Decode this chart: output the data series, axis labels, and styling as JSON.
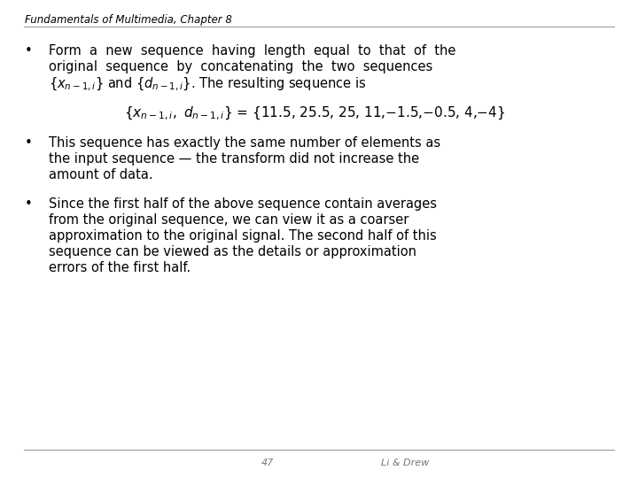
{
  "header": "Fundamentals of Multimedia, Chapter 8",
  "header_fontsize": 8.5,
  "bg_color": "#ffffff",
  "text_color": "#000000",
  "footer_page": "47",
  "footer_author": "Li & Drew",
  "footer_fontsize": 8,
  "main_fontsize": 10.5,
  "formula_fontsize": 11,
  "line_color": "#aaaaaa",
  "bullet_char": "•",
  "b1_l1": "Form  a  new  sequence  having  length  equal  to  that  of  the",
  "b1_l2": "original  sequence  by  concatenating  the  two  sequences",
  "b1_l3_pre": "}  and  {",
  "b1_l3_post": "}.  The resulting sequence is",
  "b2_l1": "This sequence has exactly the same number of elements as",
  "b2_l2": "the input sequence — the transform did not increase the",
  "b2_l3": "amount of data.",
  "b3_l1": "Since the first half of the above sequence contain averages",
  "b3_l2": "from the original sequence, we can view it as a coarser",
  "b3_l3": "approximation to the original signal. The second half of this",
  "b3_l4": "sequence can be viewed as the details or approximation",
  "b3_l5": "errors of the first half.",
  "formula_values": " = {11.5, 25.5, 25, 11,−1.5,−0.5, 4,−4}"
}
